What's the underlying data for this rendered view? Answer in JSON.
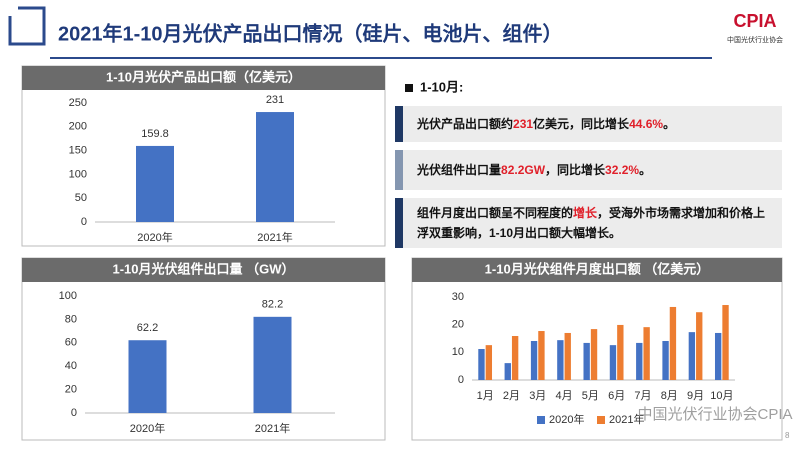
{
  "header": {
    "title": "2021年1-10月光伏产品出口情况（硅片、电池片、组件）",
    "logo": "CPIA",
    "logo_subtitle": "中国光伏行业协会"
  },
  "summary": {
    "heading": "1-10月:",
    "points": [
      [
        "光伏产品出口额约",
        "231",
        "亿美元，同比增长",
        "44.6%",
        "。"
      ],
      [
        "光伏组件出口量",
        "82.2GW",
        "，同比增长",
        "32.2%",
        "。"
      ],
      [
        "组件月度出口额呈不同程度的",
        "增长",
        "，受海外市场需求增加和价格上浮双重影响，1-10月出口额大幅增长。"
      ]
    ]
  },
  "footer": {
    "watermark": "中国光伏行业协会CPIA",
    "page": "8"
  },
  "chart_data": [
    {
      "type": "bar",
      "title": "1-10月光伏产品出口额（亿美元）",
      "categories": [
        "2020年",
        "2021年"
      ],
      "values": [
        159.8,
        231
      ],
      "color": "#4472c4",
      "ylim": [
        0,
        250
      ],
      "yticks": [
        0,
        50,
        100,
        150,
        200,
        250
      ],
      "grid": false
    },
    {
      "type": "bar",
      "title": "1-10月光伏组件出口量 （GW）",
      "categories": [
        "2020年",
        "2021年"
      ],
      "values": [
        62.2,
        82.2
      ],
      "color": "#4472c4",
      "ylim": [
        0,
        100
      ],
      "yticks": [
        0,
        20,
        40,
        60,
        80,
        100
      ],
      "grid": false
    },
    {
      "type": "bar",
      "title": "1-10月光伏组件月度出口额 （亿美元）",
      "categories": [
        "1月",
        "2月",
        "3月",
        "4月",
        "5月",
        "6月",
        "7月",
        "8月",
        "9月",
        "10月"
      ],
      "series": [
        {
          "name": "2020年",
          "color": "#4472c4",
          "values": [
            11.2,
            6.1,
            14.1,
            14.4,
            13.4,
            12.6,
            13.4,
            14.1,
            17.3,
            17.0
          ]
        },
        {
          "name": "2021年",
          "color": "#ed7d31",
          "values": [
            12.6,
            15.9,
            17.7,
            17.0,
            18.4,
            19.9,
            19.1,
            26.4,
            24.5,
            27.1
          ]
        }
      ],
      "ylim": [
        0,
        30
      ],
      "yticks": [
        0,
        10,
        20,
        30
      ],
      "grid": false,
      "legend": "bottom"
    }
  ]
}
